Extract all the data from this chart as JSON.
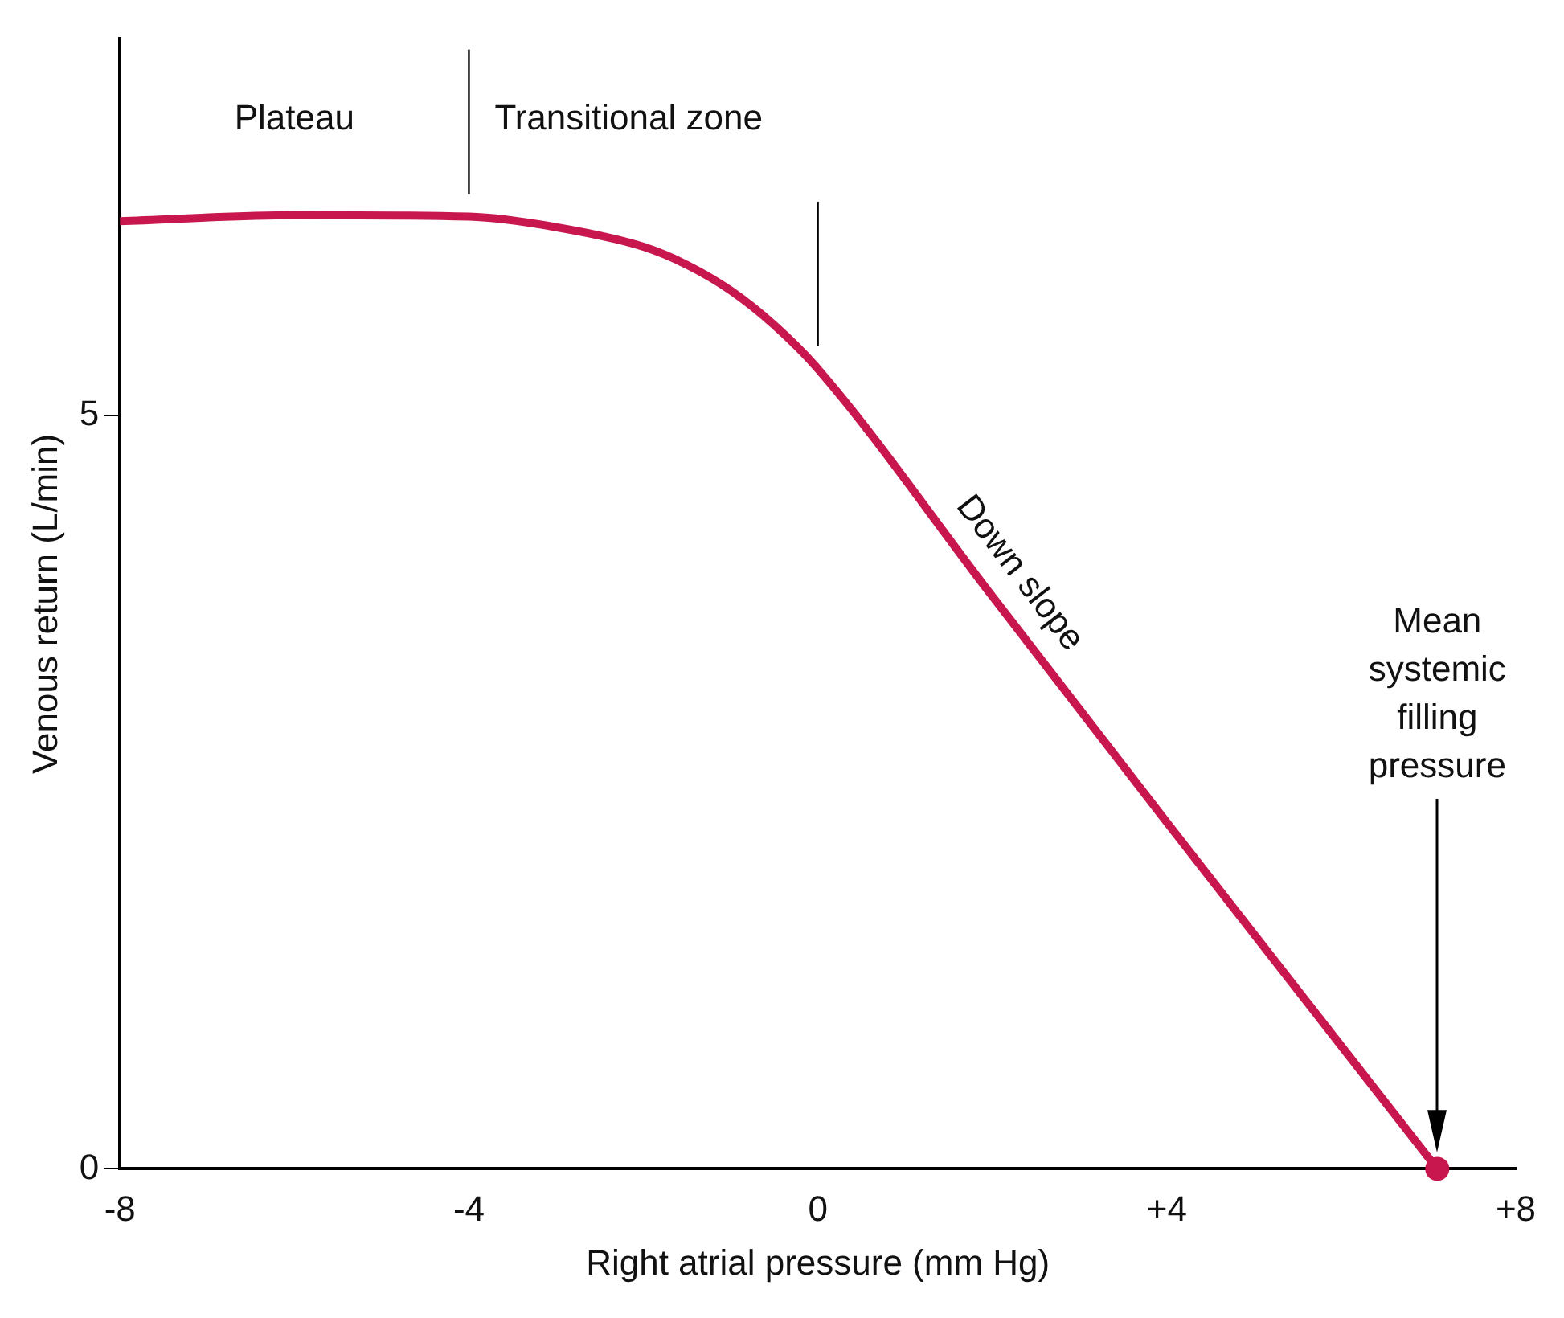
{
  "chart_data": {
    "type": "line",
    "xlabel": "Right atrial pressure (mm Hg)",
    "ylabel": "Venous return (L/min)",
    "xlim": [
      -8,
      8
    ],
    "xticks": [
      -8,
      -4,
      0,
      {
        "value": 4,
        "label": "+4"
      },
      {
        "value": 8,
        "label": "+8"
      }
    ],
    "ylim": [
      0,
      7.5
    ],
    "yticks": [
      0,
      5
    ],
    "grid": false,
    "legend": false,
    "series": [
      {
        "type": "line",
        "color": "#c8174f",
        "marker": "none",
        "line_style": "solid",
        "x": [
          -8,
          -6,
          -4,
          -3,
          -2,
          -1.5,
          -1,
          -0.5,
          0,
          2,
          4,
          7.1
        ],
        "values": [
          6.29,
          6.33,
          6.32,
          6.25,
          6.12,
          6.0,
          5.83,
          5.6,
          5.31,
          3.8,
          2.3,
          0
        ]
      },
      {
        "type": "scatter",
        "color": "#c8174f",
        "marker": "circle",
        "x": [
          7.1
        ],
        "values": [
          0
        ]
      }
    ],
    "ref_lines": [
      {
        "axis": "x",
        "value": -4,
        "color": "#000000"
      },
      {
        "axis": "x",
        "value": 0,
        "color": "#000000"
      }
    ],
    "annotations": [
      "Plateau",
      "Transitional zone",
      "Down slope",
      "Mean systemic filling pressure"
    ]
  }
}
